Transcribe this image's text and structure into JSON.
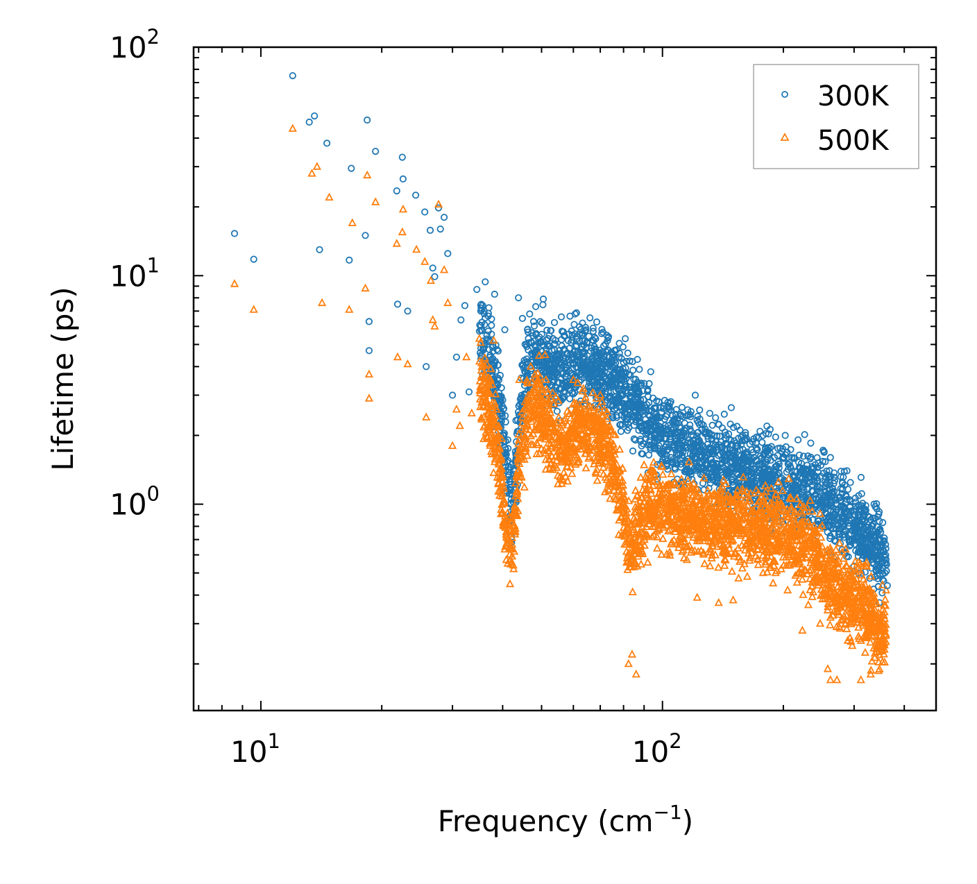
{
  "chart_data": {
    "type": "scatter",
    "title": "",
    "xlabel": {
      "base": "Frequency (cm",
      "exponent": "−1",
      "suffix": ")"
    },
    "ylabel": "Lifetime (ps)",
    "xscale": "log",
    "yscale": "log",
    "xlim": [
      6.8,
      480
    ],
    "ylim": [
      0.125,
      100
    ],
    "xticks": [
      {
        "value": 10,
        "base": "10",
        "exp": "1"
      },
      {
        "value": 100,
        "base": "10",
        "exp": "2"
      }
    ],
    "yticks": [
      {
        "value": 1,
        "base": "10",
        "exp": "0"
      },
      {
        "value": 10,
        "base": "10",
        "exp": "1"
      },
      {
        "value": 100,
        "base": "10",
        "exp": "2"
      }
    ],
    "legend_position": "top-right",
    "series": [
      {
        "name": "300K",
        "marker": "circle",
        "color": "#1f77b4",
        "points": [
          [
            8.6,
            15.3
          ],
          [
            9.6,
            11.8
          ],
          [
            12.0,
            75
          ],
          [
            13.2,
            47
          ],
          [
            13.6,
            50
          ],
          [
            14.0,
            13
          ],
          [
            14.6,
            38
          ],
          [
            16.6,
            11.7
          ],
          [
            16.8,
            29.5
          ],
          [
            18.2,
            15
          ],
          [
            18.4,
            48
          ],
          [
            18.6,
            6.3
          ],
          [
            18.6,
            4.7
          ],
          [
            19.3,
            35
          ],
          [
            21.8,
            23.5
          ],
          [
            21.9,
            7.5
          ],
          [
            22.5,
            33
          ],
          [
            22.6,
            26.5
          ],
          [
            23.2,
            7.0
          ],
          [
            24.3,
            22.5
          ],
          [
            25.6,
            19
          ],
          [
            25.8,
            4.0
          ],
          [
            26.4,
            15.8
          ],
          [
            26.8,
            10.8
          ],
          [
            27.1,
            9.9
          ],
          [
            27.7,
            19.8
          ],
          [
            28.0,
            16
          ],
          [
            28.6,
            18
          ],
          [
            29.2,
            12.5
          ],
          [
            30.0,
            3.0
          ],
          [
            30.7,
            4.4
          ],
          [
            31.5,
            6.4
          ],
          [
            32.2,
            7.4
          ],
          [
            33.0,
            3.1
          ],
          [
            34.5,
            8.7
          ],
          [
            36.2,
            9.4
          ],
          [
            38.2,
            8.3
          ],
          [
            40.5,
            5.8
          ],
          [
            43.8,
            8.0
          ],
          [
            44.8,
            6.5
          ],
          [
            46.7,
            6.8
          ],
          [
            50.5,
            7.9
          ],
          [
            56.0,
            6.6
          ],
          [
            60.6,
            6.8
          ],
          [
            67.2,
            5.9
          ],
          [
            73.4,
            5.4
          ],
          [
            80.8,
            5.3
          ],
          [
            86.6,
            4.3
          ],
          [
            93.5,
            3.8
          ],
          [
            104.0,
            2.6
          ],
          [
            120.7,
            3.0
          ],
          [
            154.0,
            1.8
          ],
          [
            160.0,
            1.9
          ],
          [
            178.0,
            2.0
          ],
          [
            190.0,
            1.6
          ],
          [
            210.0,
            1.6
          ],
          [
            234.0,
            1.85
          ],
          [
            252.5,
            1.7
          ],
          [
            262.0,
            1.6
          ],
          [
            288.0,
            1.4
          ],
          [
            318.0,
            0.9
          ],
          [
            338.0,
            0.66
          ],
          [
            358.0,
            0.5
          ],
          [
            363.0,
            0.44
          ]
        ],
        "density_trend": [
          [
            35,
            6.0
          ],
          [
            37,
            4.6
          ],
          [
            39,
            3.0
          ],
          [
            41,
            1.5
          ],
          [
            42,
            1.0
          ],
          [
            43,
            1.3
          ],
          [
            44,
            2.4
          ],
          [
            46,
            4.0
          ],
          [
            48,
            4.6
          ],
          [
            50,
            4.4
          ],
          [
            53,
            4.0
          ],
          [
            56,
            3.7
          ],
          [
            60,
            4.2
          ],
          [
            64,
            4.1
          ],
          [
            68,
            3.9
          ],
          [
            72,
            3.7
          ],
          [
            76,
            3.4
          ],
          [
            80,
            3.1
          ],
          [
            84,
            2.8
          ],
          [
            88,
            2.5
          ],
          [
            92,
            2.3
          ],
          [
            96,
            2.1
          ],
          [
            100,
            2.0
          ],
          [
            110,
            1.8
          ],
          [
            120,
            1.7
          ],
          [
            135,
            1.55
          ],
          [
            150,
            1.45
          ],
          [
            170,
            1.35
          ],
          [
            190,
            1.28
          ],
          [
            210,
            1.2
          ],
          [
            230,
            1.15
          ],
          [
            250,
            1.05
          ],
          [
            270,
            0.95
          ],
          [
            290,
            0.85
          ],
          [
            310,
            0.75
          ],
          [
            330,
            0.68
          ],
          [
            350,
            0.6
          ],
          [
            362,
            0.55
          ]
        ]
      },
      {
        "name": "500K",
        "marker": "triangle",
        "color": "#ff7f0e",
        "points": [
          [
            8.6,
            9.2
          ],
          [
            9.6,
            7.1
          ],
          [
            12.0,
            44
          ],
          [
            13.4,
            28
          ],
          [
            13.8,
            30
          ],
          [
            14.2,
            7.6
          ],
          [
            14.8,
            22
          ],
          [
            16.6,
            7.1
          ],
          [
            16.9,
            17
          ],
          [
            18.2,
            8.8
          ],
          [
            18.4,
            27.5
          ],
          [
            18.6,
            3.7
          ],
          [
            18.6,
            2.9
          ],
          [
            19.3,
            21
          ],
          [
            21.8,
            13.8
          ],
          [
            21.9,
            4.4
          ],
          [
            22.5,
            15.5
          ],
          [
            22.6,
            19.5
          ],
          [
            23.2,
            4.1
          ],
          [
            24.4,
            13
          ],
          [
            25.6,
            11.5
          ],
          [
            25.8,
            2.4
          ],
          [
            26.5,
            9.5
          ],
          [
            26.8,
            6.4
          ],
          [
            27.1,
            6.0
          ],
          [
            27.7,
            20.5
          ],
          [
            28.6,
            10.6
          ],
          [
            29.2,
            7.6
          ],
          [
            30.0,
            1.8
          ],
          [
            30.7,
            2.6
          ],
          [
            31.3,
            2.2
          ],
          [
            32.5,
            4.4
          ],
          [
            33.5,
            2.5
          ],
          [
            35.0,
            5.3
          ],
          [
            38.0,
            5.2
          ],
          [
            41.2,
            0.55
          ],
          [
            42.6,
            0.52
          ],
          [
            44.0,
            3.5
          ],
          [
            47.0,
            4.0
          ],
          [
            51.0,
            4.5
          ],
          [
            60.0,
            3.5
          ],
          [
            70.0,
            3.0
          ],
          [
            78.0,
            0.85
          ],
          [
            82.3,
            0.2
          ],
          [
            84.0,
            0.22
          ],
          [
            86.0,
            0.18
          ],
          [
            97.0,
            0.64
          ],
          [
            112.0,
            0.62
          ],
          [
            122.0,
            0.39
          ],
          [
            138.0,
            0.37
          ],
          [
            150.0,
            0.38
          ],
          [
            178.0,
            0.5
          ],
          [
            205.0,
            0.42
          ],
          [
            223.0,
            0.28
          ],
          [
            236.0,
            0.93
          ],
          [
            247.0,
            0.3
          ],
          [
            258.0,
            0.19
          ],
          [
            262.0,
            0.17
          ],
          [
            272.0,
            0.17
          ],
          [
            295.0,
            0.25
          ],
          [
            312.0,
            0.17
          ],
          [
            330.0,
            0.18
          ],
          [
            360.0,
            0.25
          ]
        ],
        "density_trend": [
          [
            35,
            3.6
          ],
          [
            37,
            2.6
          ],
          [
            39,
            1.7
          ],
          [
            40,
            1.1
          ],
          [
            41,
            0.8
          ],
          [
            42,
            0.65
          ],
          [
            43,
            0.9
          ],
          [
            44,
            1.6
          ],
          [
            46,
            2.5
          ],
          [
            48,
            2.9
          ],
          [
            50,
            2.5
          ],
          [
            53,
            2.0
          ],
          [
            56,
            1.8
          ],
          [
            60,
            2.0
          ],
          [
            64,
            2.2
          ],
          [
            68,
            2.1
          ],
          [
            72,
            1.8
          ],
          [
            76,
            1.4
          ],
          [
            80,
            1.0
          ],
          [
            83,
            0.6
          ],
          [
            86,
            0.75
          ],
          [
            90,
            0.9
          ],
          [
            95,
            1.0
          ],
          [
            100,
            0.95
          ],
          [
            110,
            0.9
          ],
          [
            120,
            0.85
          ],
          [
            135,
            0.8
          ],
          [
            150,
            0.8
          ],
          [
            170,
            0.8
          ],
          [
            190,
            0.75
          ],
          [
            210,
            0.7
          ],
          [
            230,
            0.65
          ],
          [
            250,
            0.55
          ],
          [
            265,
            0.45
          ],
          [
            280,
            0.42
          ],
          [
            300,
            0.38
          ],
          [
            320,
            0.33
          ],
          [
            340,
            0.3
          ],
          [
            362,
            0.28
          ]
        ]
      }
    ]
  }
}
